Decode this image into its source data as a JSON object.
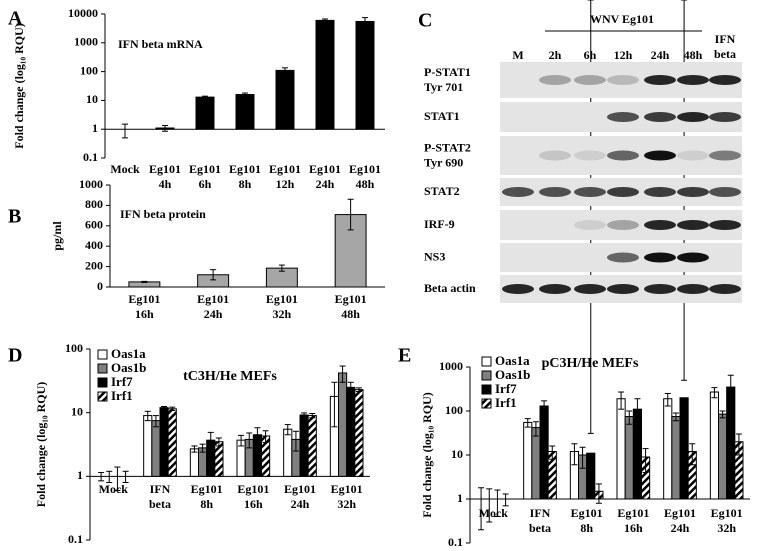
{
  "chart_data": [
    {
      "type": "bar",
      "panel": "A",
      "title": "IFN beta mRNA",
      "ylabel": "Fold change (log₁₀ RQU)",
      "categories": [
        "Mock",
        "Eg101 4h",
        "Eg101 6h",
        "Eg101 8h",
        "Eg101 12h",
        "Eg101 24h",
        "Eg101 48h"
      ],
      "values": [
        1,
        1.1,
        13,
        16,
        110,
        6000,
        5500
      ],
      "errors": [
        0.5,
        0.25,
        1,
        2,
        25,
        700,
        2000
      ],
      "color": "#000000",
      "log_scale": true,
      "bar_base": 1,
      "ylim": [
        0.1,
        10000
      ],
      "yticks": [
        0.1,
        1,
        10,
        100,
        1000,
        10000
      ]
    },
    {
      "type": "bar",
      "panel": "B",
      "title": "IFN beta protein",
      "ylabel": "pg/ml",
      "categories": [
        "Eg101 16h",
        "Eg101 24h",
        "Eg101 32h",
        "Eg101 48h"
      ],
      "values": [
        50,
        120,
        185,
        710
      ],
      "errors": [
        5,
        50,
        30,
        150
      ],
      "color": "#a6a6a6",
      "log_scale": false,
      "ylim": [
        0,
        1000
      ],
      "yticks": [
        0,
        200,
        400,
        600,
        800,
        1000
      ]
    },
    {
      "type": "bar",
      "panel": "D",
      "title": "tC3H/He MEFs",
      "ylabel": "Fold change (log₁₀ RQU)",
      "categories": [
        "Mock",
        "IFN beta",
        "Eg101 8h",
        "Eg101 16h",
        "Eg101 24h",
        "Eg101 32h"
      ],
      "series": [
        {
          "name": "Oas1a",
          "color": "#ffffff",
          "values": [
            1,
            9,
            2.7,
            3.7,
            5.5,
            18
          ],
          "errors": [
            0.15,
            1.5,
            0.3,
            0.7,
            1,
            12
          ]
        },
        {
          "name": "Oas1b",
          "color": "#808080",
          "values": [
            1,
            7.5,
            2.8,
            3.8,
            3.8,
            42
          ],
          "errors": [
            0.2,
            1.5,
            0.4,
            1,
            1.3,
            12
          ]
        },
        {
          "name": "Irf7",
          "color": "#000000",
          "values": [
            1,
            12,
            3.7,
            4.5,
            9.2,
            25
          ],
          "errors": [
            0.4,
            0.5,
            1.2,
            1.3,
            0.7,
            5
          ]
        },
        {
          "name": "Irf1",
          "color": "#ffffff",
          "pattern": "diagonal-hatch",
          "values": [
            1,
            11.5,
            3.5,
            4.3,
            9,
            23
          ],
          "errors": [
            0.2,
            0.7,
            0.5,
            0.9,
            0.7,
            1.5
          ]
        }
      ],
      "log_scale": true,
      "bar_base": 1,
      "legend": "top-left",
      "ylim": [
        0.1,
        100
      ],
      "yticks": [
        0.1,
        1,
        10,
        100
      ]
    },
    {
      "type": "bar",
      "panel": "E",
      "title": "pC3H/He MEFs",
      "ylabel": "Fold change (log₁₀ RQU)",
      "categories": [
        "Mock",
        "IFN beta",
        "Eg101 8h",
        "Eg101 16h",
        "Eg101 24h",
        "Eg101 32h"
      ],
      "series": [
        {
          "name": "Oas1a",
          "color": "#ffffff",
          "values": [
            1,
            55,
            12,
            190,
            190,
            270
          ],
          "errors": [
            0.8,
            12,
            6,
            80,
            60,
            70
          ]
        },
        {
          "name": "Oas1b",
          "color": "#808080",
          "values": [
            1,
            42,
            10,
            75,
            75,
            85
          ],
          "errors": [
            0.7,
            15,
            5,
            25,
            15,
            15
          ]
        },
        {
          "name": "Irf7",
          "color": "#000000",
          "values": [
            1,
            130,
            11,
            110,
            200,
            350
          ],
          "errors": [
            0.6,
            40,
            20,
            80,
            300,
            300
          ]
        },
        {
          "name": "Irf1",
          "color": "#ffffff",
          "pattern": "diagonal-hatch",
          "values": [
            1,
            12,
            1.5,
            9,
            12,
            20
          ],
          "errors": [
            0.3,
            4,
            0.7,
            5,
            6,
            10
          ]
        }
      ],
      "log_scale": true,
      "bar_base": 1,
      "legend": "top-left",
      "ylim": [
        0.1,
        1000
      ],
      "yticks": [
        0.1,
        1,
        10,
        100,
        1000
      ]
    }
  ],
  "blot": {
    "panel": "C",
    "group_label": "WNV Eg101",
    "lanes": [
      "M",
      "2h",
      "6h",
      "12h",
      "24h",
      "48h",
      "IFN beta"
    ],
    "rows": [
      "P-STAT1 Tyr 701",
      "STAT1",
      "P-STAT2 Tyr 690",
      "STAT2",
      "IRF-9",
      "NS3",
      "Beta actin"
    ]
  }
}
